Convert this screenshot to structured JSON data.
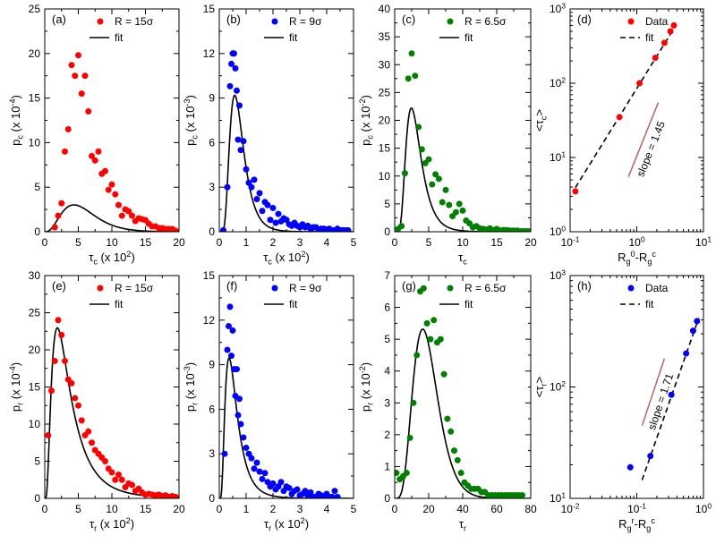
{
  "figure": {
    "background": "#ffffff"
  },
  "chart_data": [
    {
      "id": "a",
      "type": "scatter",
      "panel_label": "(a)",
      "xlabel": "τ_c (x 10^2)",
      "ylabel": "p_c (x 10^-4)",
      "xlim": [
        0,
        20
      ],
      "ylim": [
        0,
        25
      ],
      "xscale": "linear",
      "yscale": "linear",
      "xticks": [
        0,
        5,
        10,
        15,
        20
      ],
      "yticks": [
        0,
        5,
        10,
        15,
        20,
        25
      ],
      "color": "#ff0000",
      "legend": {
        "position": "top-right",
        "data_label": "R = 15σ",
        "fit_label": "fit",
        "fit_style": "solid"
      },
      "series": [
        {
          "name": "R = 15σ",
          "x": [
            1.5,
            2,
            2.5,
            3,
            3.5,
            4,
            4.5,
            5,
            5.5,
            6,
            6.5,
            7,
            7.5,
            8,
            8.5,
            9,
            9.5,
            10,
            10.5,
            11,
            11.5,
            12,
            12.5,
            13,
            13.5,
            14,
            14.5,
            15,
            15.5,
            16,
            16.5,
            17,
            17.5,
            18,
            18.5,
            19,
            19.5
          ],
          "y": [
            0.5,
            1.8,
            3.2,
            9,
            11.5,
            18.7,
            17.5,
            19.8,
            15.5,
            17.5,
            13.5,
            8.5,
            8,
            9,
            6.5,
            6.8,
            4.7,
            5.3,
            4.2,
            3,
            1.8,
            2.5,
            2.3,
            1.8,
            1.2,
            1.5,
            1.4,
            1.3,
            0.9,
            0.6,
            0.6,
            0.4,
            0.4,
            0.3,
            0.3,
            0.3,
            0.1
          ]
        },
        {
          "name": "fit",
          "dist": "gamma",
          "k": 4,
          "theta": 1.45,
          "scale": 19.5,
          "x_max": 20
        }
      ]
    },
    {
      "id": "b",
      "type": "scatter",
      "panel_label": "(b)",
      "xlabel": "τ_c (x 10^2)",
      "ylabel": "p_c (x 10^-3)",
      "xlim": [
        0,
        5
      ],
      "ylim": [
        0,
        15
      ],
      "xscale": "linear",
      "yscale": "linear",
      "xticks": [
        0,
        1,
        2,
        3,
        4,
        5
      ],
      "yticks": [
        0,
        3,
        6,
        9,
        12,
        15
      ],
      "color": "#0000ff",
      "legend": {
        "position": "top-right",
        "data_label": "R = 9σ",
        "fit_label": "fit",
        "fit_style": "solid"
      },
      "series": [
        {
          "name": "R = 9σ",
          "x": [
            0.15,
            0.3,
            0.4,
            0.45,
            0.5,
            0.55,
            0.6,
            0.65,
            0.7,
            0.75,
            0.8,
            0.9,
            1.0,
            1.1,
            1.2,
            1.3,
            1.4,
            1.5,
            1.6,
            1.7,
            1.8,
            1.9,
            2.0,
            2.1,
            2.2,
            2.3,
            2.4,
            2.5,
            2.6,
            2.7,
            2.8,
            2.9,
            3.0,
            3.1,
            3.2,
            3.3,
            3.4,
            3.5,
            3.6,
            3.7,
            3.8,
            3.9,
            4.0,
            4.1,
            4.2,
            4.3,
            4.4,
            4.5,
            4.6,
            4.7,
            4.8
          ],
          "y": [
            0.1,
            3,
            9.8,
            11.3,
            12,
            12,
            11,
            9.5,
            6.2,
            8.5,
            5.5,
            6.1,
            4.2,
            3.3,
            3,
            3.5,
            2.2,
            2.6,
            1.4,
            2,
            1.8,
            0.8,
            1.6,
            0.6,
            1.2,
            0.7,
            0.9,
            0.8,
            0.5,
            0.4,
            0.6,
            0.4,
            0.3,
            0.5,
            0.3,
            0.4,
            0.2,
            0.3,
            0.3,
            0.1,
            0.2,
            0.2,
            0.1,
            0.2,
            0.1,
            0.1,
            0.2,
            0.1,
            0.1,
            0.1,
            0.1
          ]
        },
        {
          "name": "fit",
          "dist": "lognormal",
          "mu": -0.35,
          "sigma": 0.45,
          "scale": 6.6,
          "x_max": 5
        }
      ]
    },
    {
      "id": "c",
      "type": "scatter",
      "panel_label": "(c)",
      "xlabel": "τ_c",
      "ylabel": "p_c (x 10^-2)",
      "xlim": [
        0,
        20
      ],
      "ylim": [
        0,
        40
      ],
      "xscale": "linear",
      "yscale": "linear",
      "xticks": [
        0,
        5,
        10,
        15,
        20
      ],
      "yticks": [
        0,
        5,
        10,
        15,
        20,
        25,
        30,
        35,
        40
      ],
      "color": "#008000",
      "legend": {
        "position": "top-right",
        "data_label": "R = 6.5σ",
        "fit_label": "fit",
        "fit_style": "solid"
      },
      "series": [
        {
          "name": "R = 6.5σ",
          "x": [
            0.5,
            1,
            1.5,
            2,
            2.5,
            3,
            3.5,
            4,
            4.5,
            5,
            5.5,
            6,
            6.5,
            7,
            7.5,
            8,
            8.5,
            9,
            9.5,
            10,
            10.5,
            11,
            11.5,
            12,
            12.5,
            13,
            13.5,
            14,
            14.5,
            15,
            15.5,
            16,
            16.5,
            17,
            17.5,
            18,
            18.5,
            19,
            19.5,
            20
          ],
          "y": [
            0.5,
            1,
            10.5,
            27.5,
            32,
            28,
            18.8,
            14.8,
            12.3,
            13,
            8.5,
            10.3,
            9.5,
            5.3,
            7.5,
            4.8,
            2.8,
            3.5,
            5,
            3.8,
            2,
            1.5,
            0.8,
            1,
            0.6,
            0.5,
            0.4,
            0.6,
            0.3,
            0.5,
            0.2,
            0.3,
            0.3,
            0.2,
            0.2,
            0.2,
            0.1,
            0.1,
            0.1,
            0.1
          ]
        },
        {
          "name": "fit",
          "dist": "lognormal",
          "mu": 1.1,
          "sigma": 0.45,
          "scale": 68,
          "x_max": 20
        }
      ]
    },
    {
      "id": "d",
      "type": "scatter",
      "panel_label": "(d)",
      "xlabel": "R_g^0-R_g^c",
      "ylabel": "<τ_c>",
      "xlim": [
        0.1,
        10
      ],
      "ylim": [
        1,
        1000
      ],
      "xscale": "log",
      "yscale": "log",
      "xticks": [
        0.1,
        1,
        10
      ],
      "yticks": [
        1,
        10,
        100,
        1000
      ],
      "xticklabels": [
        "10^-1",
        "10^0",
        "10^1"
      ],
      "yticklabels": [
        "10^0",
        "10^1",
        "10^2",
        "10^3"
      ],
      "color": "#ff0000",
      "legend": {
        "position": "top-right",
        "data_label": "Data",
        "fit_label": "fit",
        "fit_style": "dashed"
      },
      "annotation": {
        "text": "slope = 1.45",
        "color": "#b56464",
        "line_x": [
          0.75,
          2.1
        ],
        "line_y": [
          5.5,
          55
        ]
      },
      "series": [
        {
          "name": "Data",
          "x": [
            0.12,
            0.55,
            1.1,
            1.9,
            2.6,
            3.2,
            3.6
          ],
          "y": [
            3.5,
            35,
            100,
            220,
            350,
            500,
            600
          ]
        },
        {
          "name": "fit",
          "dist": "power",
          "slope": 1.45,
          "x0": 1.0,
          "y0": 85,
          "x_range": [
            0.12,
            3.8
          ]
        }
      ]
    },
    {
      "id": "e",
      "type": "scatter",
      "panel_label": "(e)",
      "xlabel": "τ_r (x 10^2)",
      "ylabel": "p_r (x 10^-4)",
      "xlim": [
        0,
        20
      ],
      "ylim": [
        0,
        30
      ],
      "xscale": "linear",
      "yscale": "linear",
      "xticks": [
        0,
        5,
        10,
        15,
        20
      ],
      "yticks": [
        0,
        5,
        10,
        15,
        20,
        25,
        30
      ],
      "color": "#ff0000",
      "legend": {
        "position": "top-right",
        "data_label": "R = 15σ",
        "fit_label": "fit",
        "fit_style": "solid"
      },
      "series": [
        {
          "name": "R = 15σ",
          "x": [
            0.5,
            1,
            1.5,
            2,
            2.5,
            3,
            3.5,
            4,
            4.5,
            5,
            5.5,
            6,
            6.5,
            7,
            7.5,
            8,
            8.5,
            9,
            9.5,
            10,
            10.5,
            11,
            11.5,
            12,
            12.5,
            13,
            13.5,
            14,
            14.5,
            15,
            15.5,
            16,
            16.5,
            17,
            17.5,
            18,
            18.5,
            19,
            19.5
          ],
          "y": [
            8.5,
            14.5,
            18.5,
            24,
            22,
            18.5,
            16,
            15.5,
            13.5,
            12.5,
            10.5,
            8.5,
            9,
            7.5,
            6.5,
            6,
            5.5,
            5,
            4,
            3.5,
            2.5,
            3.2,
            2.5,
            1.5,
            2,
            1.8,
            1,
            1.3,
            0.8,
            0.5,
            0.6,
            0.5,
            0.4,
            0.5,
            0.3,
            0.4,
            0.2,
            0.3,
            0.2
          ]
        },
        {
          "name": "fit",
          "dist": "lognormal",
          "mu": 1.15,
          "sigma": 0.72,
          "scale": 101,
          "x_max": 20
        }
      ]
    },
    {
      "id": "f",
      "type": "scatter",
      "panel_label": "(f)",
      "xlabel": "τ_r (x 10^2)",
      "ylabel": "p_r (x 10^-3)",
      "xlim": [
        0,
        5
      ],
      "ylim": [
        0,
        15
      ],
      "xscale": "linear",
      "yscale": "linear",
      "xticks": [
        0,
        1,
        2,
        3,
        4,
        5
      ],
      "yticks": [
        0,
        3,
        6,
        9,
        12,
        15
      ],
      "color": "#0000ff",
      "legend": {
        "position": "top-right",
        "data_label": "R = 9σ",
        "fit_label": "fit",
        "fit_style": "solid"
      },
      "series": [
        {
          "name": "R = 9σ",
          "x": [
            0.2,
            0.3,
            0.35,
            0.4,
            0.45,
            0.5,
            0.55,
            0.6,
            0.65,
            0.7,
            0.75,
            0.8,
            0.9,
            1.0,
            1.1,
            1.2,
            1.3,
            1.4,
            1.5,
            1.6,
            1.7,
            1.8,
            1.9,
            2.0,
            2.1,
            2.2,
            2.3,
            2.4,
            2.5,
            2.6,
            2.7,
            2.8,
            2.9,
            3.0,
            3.1,
            3.2,
            3.3,
            3.4,
            3.5,
            3.6,
            3.7,
            3.8,
            3.9,
            4.0,
            4.1,
            4.2,
            4.3,
            4.4
          ],
          "y": [
            3,
            10,
            11.6,
            12.9,
            9.6,
            11.3,
            8.7,
            6.9,
            8.7,
            5.6,
            6.7,
            5,
            4.1,
            3.4,
            3,
            2.7,
            2,
            2.4,
            1.8,
            1.3,
            1.7,
            1.1,
            0.8,
            1,
            0.6,
            0.8,
            1.1,
            0.5,
            0.8,
            0.7,
            0.3,
            0.5,
            0.6,
            0.2,
            0.3,
            0.5,
            0.2,
            0.4,
            0.1,
            0.1,
            0.3,
            0.2,
            0.1,
            0.3,
            0.1,
            0.1,
            0.5,
            0.1
          ]
        },
        {
          "name": "fit",
          "dist": "lognormal",
          "mu": -0.65,
          "sigma": 0.6,
          "scale": 6.2,
          "x_max": 5
        }
      ]
    },
    {
      "id": "g",
      "type": "scatter",
      "panel_label": "(g)",
      "xlabel": "τ_r",
      "ylabel": "p_r (x 10^-2)",
      "xlim": [
        0,
        80
      ],
      "ylim": [
        0,
        7
      ],
      "xscale": "linear",
      "yscale": "linear",
      "xticks": [
        0,
        20,
        40,
        60,
        80
      ],
      "yticks": [
        0,
        1,
        2,
        3,
        4,
        5,
        6,
        7
      ],
      "color": "#008000",
      "legend": {
        "position": "top-right",
        "data_label": "R = 6.5σ",
        "fit_label": "fit",
        "fit_style": "solid"
      },
      "series": [
        {
          "name": "R = 6.5σ",
          "x": [
            1,
            3,
            5,
            7,
            9,
            11,
            13,
            15,
            17,
            19,
            21,
            23,
            25,
            27,
            29,
            31,
            33,
            35,
            37,
            39,
            41,
            43,
            45,
            47,
            49,
            51,
            53,
            55,
            57,
            59,
            61,
            63,
            65,
            67,
            69,
            71,
            73,
            75
          ],
          "y": [
            0.8,
            0.6,
            0.7,
            0.8,
            1.9,
            3,
            4.5,
            6.5,
            6.6,
            5.5,
            5,
            5.6,
            4.9,
            5,
            3.9,
            2.5,
            2.1,
            1.5,
            1.2,
            0.8,
            0.5,
            0.4,
            0.3,
            0.3,
            0.3,
            0.2,
            0.2,
            0.1,
            0.1,
            0.1,
            0.1,
            0.1,
            0.1,
            0.1,
            0.1,
            0.1,
            0.1,
            0.1
          ]
        },
        {
          "name": "fit",
          "dist": "gamma",
          "k": 6,
          "theta": 3.3,
          "scale": 100,
          "x_max": 80
        }
      ]
    },
    {
      "id": "h",
      "type": "scatter",
      "panel_label": "(h)",
      "xlabel": "R_g^r-R_g^c",
      "ylabel": "<τ_r>",
      "xlim": [
        0.01,
        1
      ],
      "ylim": [
        10,
        1000
      ],
      "xscale": "log",
      "yscale": "log",
      "xticks": [
        0.01,
        0.1,
        1
      ],
      "yticks": [
        10,
        100,
        1000
      ],
      "xticklabels": [
        "10^-2",
        "10^-1",
        "10^0"
      ],
      "yticklabels": [
        "10^1",
        "10^2",
        "10^3"
      ],
      "color": "#0000ff",
      "legend": {
        "position": "top-right",
        "data_label": "Data",
        "fit_label": "fit",
        "fit_style": "dashed"
      },
      "annotation": {
        "text": "slope = 1.71",
        "color": "#b56464",
        "line_x": [
          0.12,
          0.26
        ],
        "line_y": [
          45,
          180
        ]
      },
      "series": [
        {
          "name": "Data",
          "x": [
            0.08,
            0.16,
            0.33,
            0.55,
            0.7,
            0.8
          ],
          "y": [
            19,
            24,
            85,
            200,
            320,
            390
          ]
        },
        {
          "name": "fit",
          "dist": "power",
          "slope": 1.71,
          "x0": 0.3,
          "y0": 70,
          "x_range": [
            0.12,
            0.85
          ]
        }
      ]
    }
  ]
}
